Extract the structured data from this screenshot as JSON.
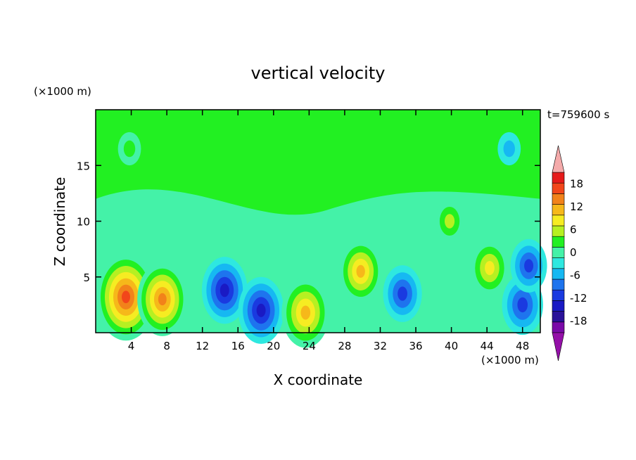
{
  "chart_data": {
    "type": "heatmap",
    "title": "vertical velocity",
    "xlabel": "X coordinate",
    "ylabel": "Z coordinate",
    "x_unit": "(×1000 m)",
    "y_unit": "(×1000 m)",
    "time_label": "t=759600 s",
    "xlim": [
      0,
      50
    ],
    "ylim": [
      0,
      20
    ],
    "xticks": [
      4,
      8,
      12,
      16,
      20,
      24,
      28,
      32,
      36,
      40,
      44,
      48
    ],
    "yticks": [
      5,
      10,
      15
    ],
    "colorbar": {
      "ticks": [
        18,
        12,
        6,
        0,
        -6,
        -12,
        -18
      ],
      "levels": [
        -21,
        -18,
        -15,
        -12,
        -9,
        -6,
        -3,
        0,
        3,
        6,
        9,
        12,
        15,
        18,
        21
      ],
      "colors": [
        "#7a0aa8",
        "#2a1299",
        "#1a1ac4",
        "#1a3ae0",
        "#1e74ee",
        "#16b8f2",
        "#2ee8e0",
        "#44f2a8",
        "#22f022",
        "#b6f022",
        "#f6ec22",
        "#f6b81a",
        "#f2821a",
        "#f2461a",
        "#e61a1a",
        "#f4aaaa"
      ],
      "under_color": "#9410a8",
      "over_color": "#f4aaaa"
    },
    "features": [
      {
        "x": 3.4,
        "z": 3.2,
        "w": 20
      },
      {
        "x": 7.5,
        "z": 3.0,
        "w": 16
      },
      {
        "x": 14.5,
        "z": 3.8,
        "w": -14
      },
      {
        "x": 18.6,
        "z": 2.0,
        "w": -14
      },
      {
        "x": 23.6,
        "z": 1.8,
        "w": 15
      },
      {
        "x": 29.8,
        "z": 5.5,
        "w": 13
      },
      {
        "x": 34.5,
        "z": 3.5,
        "w": -11
      },
      {
        "x": 39.8,
        "z": 10.0,
        "w": 7
      },
      {
        "x": 44.3,
        "z": 5.8,
        "w": 11
      },
      {
        "x": 48.0,
        "z": 2.5,
        "w": -12
      },
      {
        "x": 48.7,
        "z": 6.0,
        "w": -10
      },
      {
        "x": 46.5,
        "z": 16.5,
        "w": -4
      },
      {
        "x": 3.8,
        "z": 16.5,
        "w": 4
      }
    ]
  }
}
